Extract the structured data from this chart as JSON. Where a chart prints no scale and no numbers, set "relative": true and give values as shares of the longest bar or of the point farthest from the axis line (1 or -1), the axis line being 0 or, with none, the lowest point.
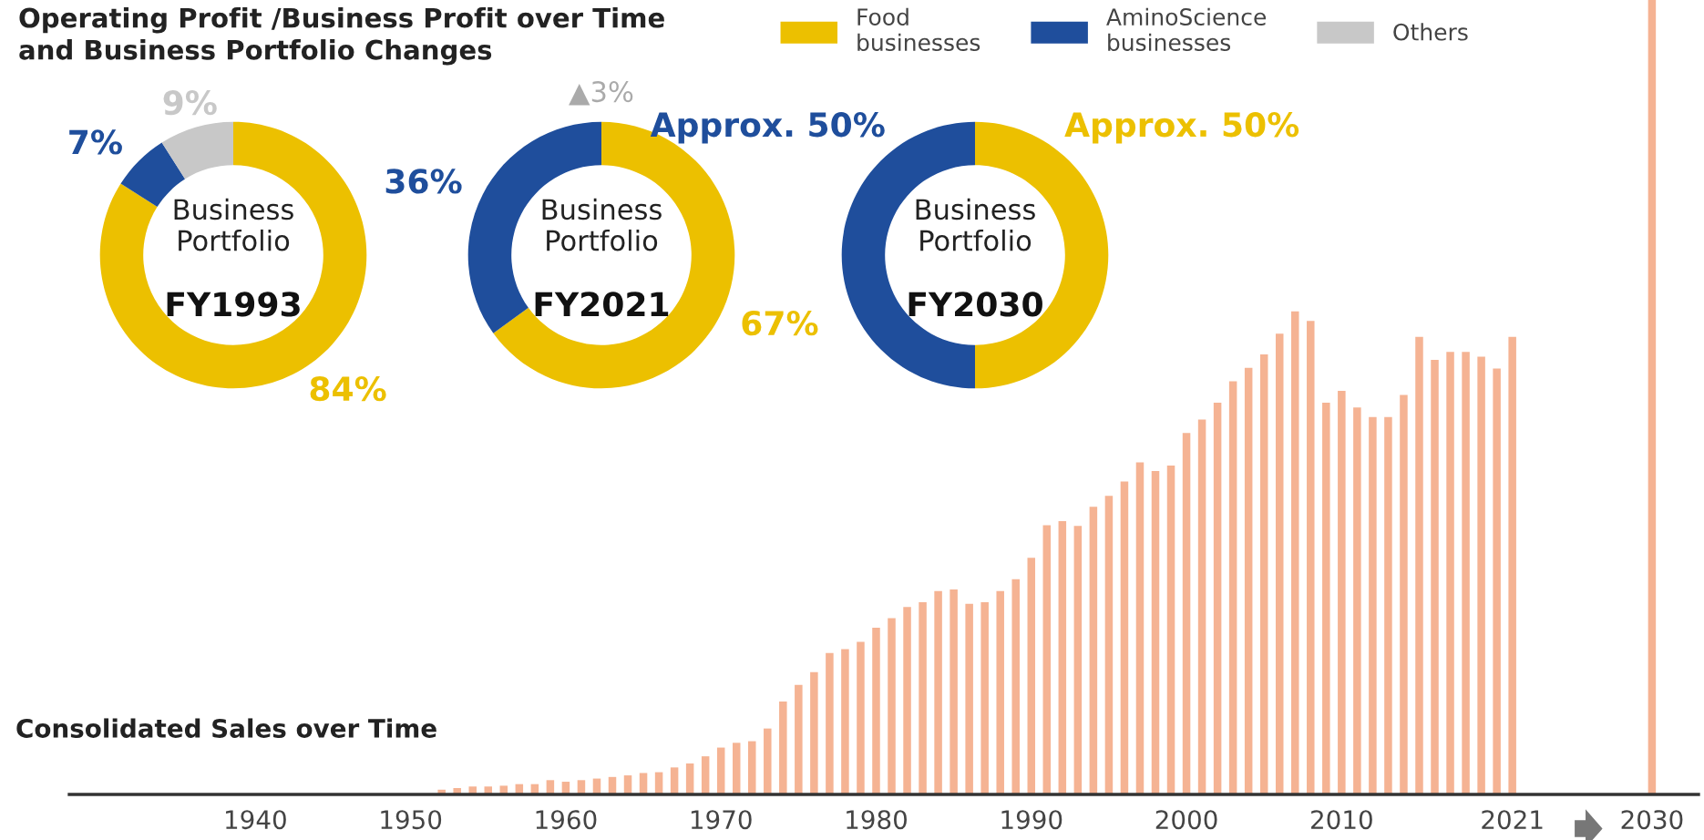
{
  "chart_data": [
    {
      "type": "donut",
      "title": "Operating Profit /Business Profit over Time\nand Business Portfolio Changes",
      "categories": [
        "Food\nbusinesses",
        "AminoScience\nbusinesses",
        "Others"
      ],
      "values": [
        84,
        7,
        9
      ],
      "colors": [
        "#ecc000",
        "#1f4e9c",
        "#c8c8c8"
      ],
      "value_labels": [
        "84%",
        "7%",
        "9%"
      ],
      "annotations": [
        "Business\nPortfolio",
        "FY1993"
      ],
      "legend": "top"
    },
    {
      "type": "donut",
      "values": [
        67,
        36
      ],
      "colors": [
        "#ecc000",
        "#1f4e9c"
      ],
      "value_labels": [
        "67%",
        "36%"
      ],
      "annotations": [
        "Business\nPortfolio",
        "FY2021",
        "▲3%"
      ]
    },
    {
      "type": "donut",
      "values": [
        50,
        50
      ],
      "colors": [
        "#ecc000",
        "#1f4e9c"
      ],
      "value_labels": [
        "Approx. 50%",
        "Approx. 50%"
      ],
      "annotations": [
        "Business\nPortfolio",
        "FY2030"
      ]
    },
    {
      "type": "bar",
      "title": "Consolidated Sales over Time",
      "relative": true,
      "color": "#f5b393",
      "x": [
        1952,
        1953,
        1954,
        1955,
        1956,
        1957,
        1958,
        1959,
        1960,
        1961,
        1962,
        1963,
        1964,
        1965,
        1966,
        1967,
        1968,
        1969,
        1970,
        1971,
        1972,
        1973,
        1974,
        1975,
        1976,
        1977,
        1978,
        1979,
        1980,
        1981,
        1982,
        1983,
        1984,
        1985,
        1986,
        1987,
        1988,
        1989,
        1990,
        1991,
        1992,
        1993,
        1994,
        1995,
        1996,
        1997,
        1998,
        1999,
        2000,
        2001,
        2002,
        2003,
        2004,
        2005,
        2006,
        2007,
        2008,
        2009,
        2010,
        2011,
        2012,
        2013,
        2014,
        2015,
        2016,
        2017,
        2018,
        2019,
        2020,
        2021,
        2030
      ],
      "values": [
        0.006,
        0.008,
        0.01,
        0.01,
        0.011,
        0.013,
        0.013,
        0.018,
        0.016,
        0.018,
        0.02,
        0.022,
        0.024,
        0.027,
        0.028,
        0.034,
        0.039,
        0.048,
        0.059,
        0.065,
        0.067,
        0.083,
        0.117,
        0.138,
        0.154,
        0.178,
        0.183,
        0.192,
        0.21,
        0.222,
        0.236,
        0.242,
        0.256,
        0.258,
        0.24,
        0.242,
        0.256,
        0.271,
        0.298,
        0.339,
        0.344,
        0.338,
        0.362,
        0.376,
        0.394,
        0.418,
        0.407,
        0.414,
        0.455,
        0.472,
        0.493,
        0.52,
        0.537,
        0.554,
        0.58,
        0.608,
        0.596,
        0.493,
        0.508,
        0.487,
        0.475,
        0.475,
        0.503,
        0.576,
        0.547,
        0.557,
        0.557,
        0.551,
        0.536,
        0.576,
        1
      ],
      "xlim": [
        1928,
        2033
      ],
      "xticks": [
        1940,
        1950,
        1960,
        1970,
        1980,
        1990,
        2000,
        2010,
        2021,
        2030
      ]
    }
  ]
}
